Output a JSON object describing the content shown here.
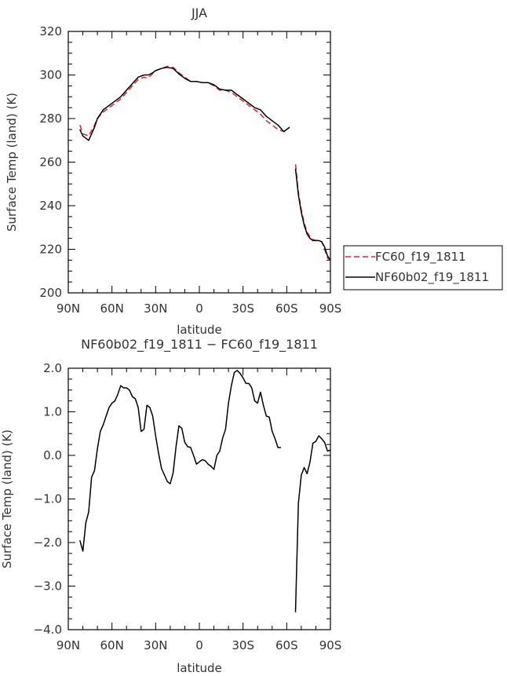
{
  "chart_data": [
    {
      "type": "line",
      "title": "JJA",
      "xlabel": "latitude",
      "ylabel": "Surface Temp (land) (K)",
      "xlim": [
        90,
        -90
      ],
      "ylim": [
        200,
        320
      ],
      "x_ticks": [
        90,
        60,
        30,
        0,
        -30,
        -60,
        -90
      ],
      "x_tick_labels": [
        "90N",
        "60N",
        "30N",
        "0",
        "30S",
        "60S",
        "90S"
      ],
      "y_ticks": [
        200,
        220,
        240,
        260,
        280,
        300,
        320
      ],
      "y_tick_labels": [
        "200",
        "220",
        "240",
        "260",
        "280",
        "300",
        "320"
      ],
      "legend_position": "right",
      "series": [
        {
          "name": "FC60_f19_1811",
          "color": "#d62728",
          "dash": "dashed",
          "segments": [
            [
              [
                82,
                277
              ],
              [
                80,
                273
              ],
              [
                76,
                272
              ],
              [
                72,
                277
              ],
              [
                70,
                280
              ],
              [
                66,
                283
              ],
              [
                62,
                285
              ],
              [
                58,
                287
              ],
              [
                54,
                289
              ],
              [
                50,
                292
              ],
              [
                46,
                295
              ],
              [
                42,
                298
              ],
              [
                38,
                299
              ],
              [
                36,
                298.5
              ],
              [
                33,
                300
              ],
              [
                30,
                302
              ],
              [
                26,
                303
              ],
              [
                22,
                304
              ],
              [
                18,
                303.5
              ],
              [
                14,
                301
              ],
              [
                10,
                299
              ],
              [
                6,
                297
              ],
              [
                2,
                297
              ],
              [
                -2,
                296.5
              ],
              [
                -6,
                296.5
              ],
              [
                -10,
                295
              ],
              [
                -14,
                293
              ],
              [
                -18,
                293
              ],
              [
                -22,
                292
              ],
              [
                -26,
                290
              ],
              [
                -30,
                288
              ],
              [
                -34,
                286
              ],
              [
                -38,
                284
              ],
              [
                -42,
                282
              ],
              [
                -46,
                279
              ],
              [
                -50,
                277
              ],
              [
                -54,
                275
              ],
              [
                -58,
                274
              ],
              [
                -62,
                276
              ]
            ],
            [
              [
                -66,
                259
              ],
              [
                -68,
                246
              ],
              [
                -70,
                238
              ],
              [
                -72,
                232
              ],
              [
                -74,
                228
              ],
              [
                -76,
                225.5
              ],
              [
                -78,
                224.5
              ],
              [
                -80,
                224
              ],
              [
                -82,
                224
              ],
              [
                -84,
                223.5
              ],
              [
                -86,
                220
              ],
              [
                -88,
                216
              ],
              [
                -90,
                215
              ]
            ]
          ]
        },
        {
          "name": "NF60b02_f19_1811",
          "color": "#000000",
          "dash": "solid",
          "segments": [
            [
              [
                82,
                275
              ],
              [
                80,
                272
              ],
              [
                76,
                270
              ],
              [
                72,
                276
              ],
              [
                70,
                280
              ],
              [
                66,
                284
              ],
              [
                62,
                286
              ],
              [
                58,
                288
              ],
              [
                54,
                290
              ],
              [
                50,
                293
              ],
              [
                46,
                296
              ],
              [
                42,
                299
              ],
              [
                38,
                300
              ],
              [
                35,
                300
              ],
              [
                32,
                301
              ],
              [
                30,
                302
              ],
              [
                26,
                303
              ],
              [
                22,
                303.5
              ],
              [
                18,
                303
              ],
              [
                14,
                300.5
              ],
              [
                10,
                298.5
              ],
              [
                6,
                297
              ],
              [
                2,
                297
              ],
              [
                -2,
                296.5
              ],
              [
                -6,
                296.5
              ],
              [
                -10,
                295.5
              ],
              [
                -14,
                293.5
              ],
              [
                -18,
                293
              ],
              [
                -22,
                293
              ],
              [
                -26,
                291
              ],
              [
                -30,
                289
              ],
              [
                -34,
                287
              ],
              [
                -38,
                285
              ],
              [
                -42,
                284
              ],
              [
                -46,
                281
              ],
              [
                -50,
                279
              ],
              [
                -54,
                277
              ],
              [
                -58,
                274
              ],
              [
                -62,
                276
              ]
            ],
            [
              [
                -66,
                257
              ],
              [
                -68,
                245
              ],
              [
                -70,
                237
              ],
              [
                -72,
                231
              ],
              [
                -74,
                227
              ],
              [
                -76,
                225
              ],
              [
                -78,
                224
              ],
              [
                -80,
                224
              ],
              [
                -82,
                224
              ],
              [
                -84,
                223.5
              ],
              [
                -86,
                221
              ],
              [
                -88,
                217
              ],
              [
                -90,
                215
              ]
            ]
          ]
        }
      ]
    },
    {
      "type": "line",
      "title": "NF60b02_f19_1811 − FC60_f19_1811",
      "xlabel": "latitude",
      "ylabel": "Surface Temp (land) (K)",
      "xlim": [
        90,
        -90
      ],
      "ylim": [
        -4.0,
        2.0
      ],
      "x_ticks": [
        90,
        60,
        30,
        0,
        -30,
        -60,
        -90
      ],
      "x_tick_labels": [
        "90N",
        "60N",
        "30N",
        "0",
        "30S",
        "60S",
        "90S"
      ],
      "y_ticks": [
        -4.0,
        -3.0,
        -2.0,
        -1.0,
        0.0,
        1.0,
        2.0
      ],
      "y_tick_labels": [
        "−4.0",
        "−3.0",
        "−2.0",
        "−1.0",
        "0.0",
        "1.0",
        "2.0"
      ],
      "series": [
        {
          "color": "#000000",
          "dash": "solid",
          "segments": [
            [
              [
                82,
                -1.95
              ],
              [
                80,
                -2.2
              ],
              [
                78,
                -1.55
              ],
              [
                76,
                -1.3
              ],
              [
                74,
                -0.5
              ],
              [
                72,
                -0.35
              ],
              [
                70,
                0.15
              ],
              [
                68,
                0.55
              ],
              [
                66,
                0.7
              ],
              [
                64,
                0.9
              ],
              [
                62,
                1.1
              ],
              [
                60,
                1.2
              ],
              [
                58,
                1.25
              ],
              [
                56,
                1.4
              ],
              [
                54,
                1.6
              ],
              [
                52,
                1.55
              ],
              [
                50,
                1.55
              ],
              [
                48,
                1.5
              ],
              [
                46,
                1.35
              ],
              [
                44,
                1.3
              ],
              [
                42,
                1.1
              ],
              [
                40,
                0.55
              ],
              [
                38,
                0.6
              ],
              [
                36,
                1.15
              ],
              [
                34,
                1.1
              ],
              [
                32,
                0.9
              ],
              [
                30,
                0.45
              ],
              [
                28,
                0.05
              ],
              [
                26,
                -0.3
              ],
              [
                24,
                -0.45
              ],
              [
                22,
                -0.6
              ],
              [
                20,
                -0.65
              ],
              [
                18,
                -0.4
              ],
              [
                16,
                0.2
              ],
              [
                14,
                0.68
              ],
              [
                12,
                0.62
              ],
              [
                10,
                0.3
              ],
              [
                8,
                0.2
              ],
              [
                6,
                0.18
              ],
              [
                4,
                0.0
              ],
              [
                2,
                -0.2
              ],
              [
                0,
                -0.15
              ],
              [
                -2,
                -0.1
              ],
              [
                -4,
                -0.12
              ],
              [
                -6,
                -0.2
              ],
              [
                -8,
                -0.25
              ],
              [
                -10,
                -0.32
              ],
              [
                -12,
                0.0
              ],
              [
                -14,
                0.1
              ],
              [
                -16,
                0.4
              ],
              [
                -18,
                0.6
              ],
              [
                -20,
                1.2
              ],
              [
                -22,
                1.6
              ],
              [
                -24,
                1.9
              ],
              [
                -26,
                1.95
              ],
              [
                -28,
                1.88
              ],
              [
                -30,
                1.78
              ],
              [
                -32,
                1.65
              ],
              [
                -34,
                1.65
              ],
              [
                -36,
                1.55
              ],
              [
                -38,
                1.25
              ],
              [
                -40,
                1.2
              ],
              [
                -42,
                1.45
              ],
              [
                -44,
                1.15
              ],
              [
                -46,
                0.9
              ],
              [
                -48,
                0.88
              ],
              [
                -50,
                0.55
              ],
              [
                -52,
                0.38
              ],
              [
                -54,
                0.18
              ],
              [
                -56,
                0.18
              ]
            ],
            [
              [
                -66,
                -3.6
              ],
              [
                -68,
                -1.1
              ],
              [
                -70,
                -0.45
              ],
              [
                -72,
                -0.28
              ],
              [
                -74,
                -0.42
              ],
              [
                -76,
                -0.15
              ],
              [
                -78,
                0.28
              ],
              [
                -80,
                0.32
              ],
              [
                -82,
                0.45
              ],
              [
                -84,
                0.38
              ],
              [
                -86,
                0.3
              ],
              [
                -88,
                0.1
              ],
              [
                -90,
                0.12
              ]
            ]
          ]
        }
      ]
    }
  ]
}
